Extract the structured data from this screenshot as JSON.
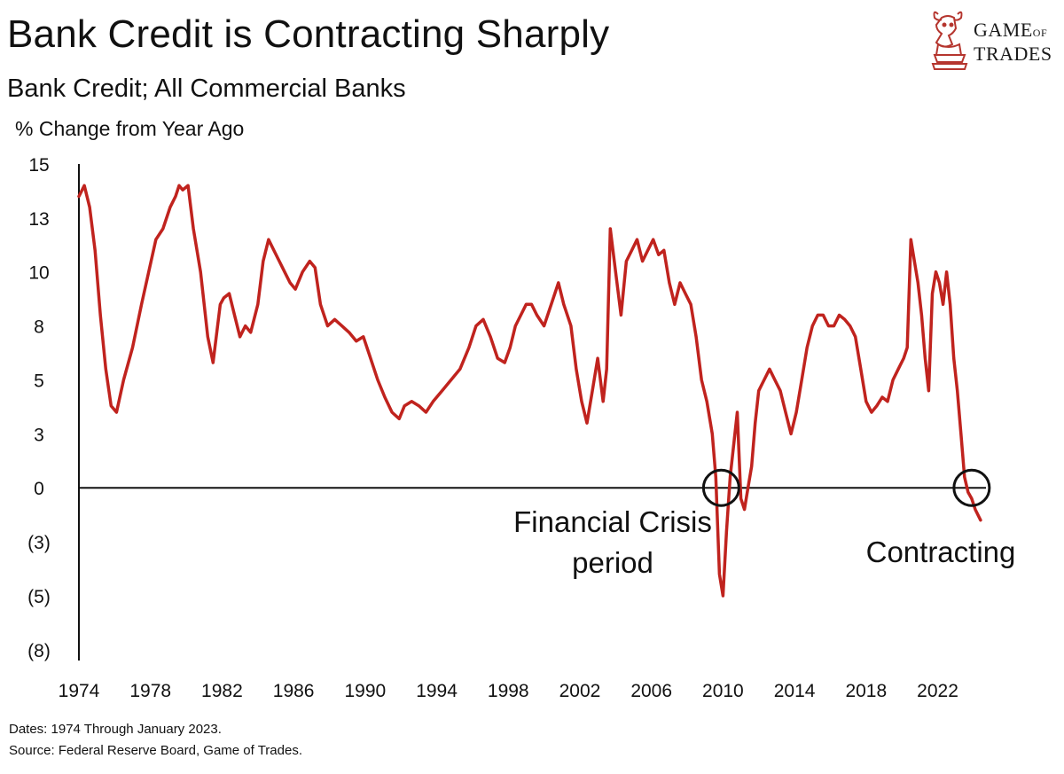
{
  "chart_data": {
    "type": "line",
    "title": "Bank Credit is Contracting Sharply",
    "subtitle": "Bank Credit; All Commercial Banks",
    "ylabel": "% Change from Year Ago",
    "xlabel": "",
    "ylim": [
      -8,
      15
    ],
    "xlim": [
      1974,
      2024.7
    ],
    "yticks": [
      15,
      12.5,
      10,
      7.5,
      5,
      2.5,
      0,
      -2.5,
      -5,
      -7.5
    ],
    "ytick_labels": [
      "15",
      "13",
      "10",
      "8",
      "5",
      "3",
      "0",
      "(3)",
      "(5)",
      "(8)"
    ],
    "xticks": [
      1974,
      1978,
      1982,
      1986,
      1990,
      1994,
      1998,
      2002,
      2006,
      2010,
      2014,
      2018,
      2022
    ],
    "xtick_labels": [
      "1974",
      "1978",
      "1982",
      "1986",
      "1990",
      "1994",
      "1998",
      "2002",
      "2006",
      "2010",
      "2014",
      "2018",
      "2022"
    ],
    "line_color": "#c0231e",
    "series": [
      {
        "name": "Bank Credit % Change from Year Ago",
        "x": [
          1974.0,
          1974.3,
          1974.6,
          1974.9,
          1975.2,
          1975.5,
          1975.8,
          1976.1,
          1976.5,
          1977.0,
          1977.5,
          1977.9,
          1978.3,
          1978.7,
          1979.1,
          1979.4,
          1979.6,
          1979.8,
          1980.1,
          1980.4,
          1980.8,
          1981.2,
          1981.5,
          1981.9,
          1982.1,
          1982.4,
          1982.7,
          1983.0,
          1983.3,
          1983.6,
          1984.0,
          1984.3,
          1984.6,
          1984.9,
          1985.2,
          1985.5,
          1985.8,
          1986.1,
          1986.5,
          1986.9,
          1987.2,
          1987.5,
          1987.9,
          1988.3,
          1988.7,
          1989.1,
          1989.5,
          1989.9,
          1990.3,
          1990.7,
          1991.1,
          1991.5,
          1991.9,
          1992.2,
          1992.6,
          1993.0,
          1993.4,
          1993.8,
          1994.3,
          1994.8,
          1995.3,
          1995.8,
          1996.2,
          1996.6,
          1997.0,
          1997.4,
          1997.8,
          1998.1,
          1998.4,
          1998.7,
          1999.0,
          1999.3,
          1999.6,
          2000.0,
          2000.4,
          2000.8,
          2001.1,
          2001.5,
          2001.8,
          2002.1,
          2002.4,
          2002.7,
          2003.0,
          2003.3,
          2003.5,
          2003.7,
          2004.0,
          2004.3,
          2004.6,
          2004.9,
          2005.2,
          2005.5,
          2005.8,
          2006.1,
          2006.4,
          2006.7,
          2007.0,
          2007.3,
          2007.6,
          2007.9,
          2008.2,
          2008.5,
          2008.8,
          2009.1,
          2009.4,
          2009.6,
          2009.8,
          2010.0,
          2010.2,
          2010.4,
          2010.6,
          2010.8,
          2011.0,
          2011.2,
          2011.4,
          2011.6,
          2011.8,
          2012.0,
          2012.3,
          2012.6,
          2012.9,
          2013.2,
          2013.5,
          2013.8,
          2014.1,
          2014.4,
          2014.7,
          2015.0,
          2015.3,
          2015.6,
          2015.9,
          2016.2,
          2016.5,
          2016.8,
          2017.1,
          2017.4,
          2017.7,
          2018.0,
          2018.3,
          2018.6,
          2018.9,
          2019.2,
          2019.5,
          2019.8,
          2020.1,
          2020.3,
          2020.5,
          2020.7,
          2020.9,
          2021.1,
          2021.3,
          2021.5,
          2021.7,
          2021.9,
          2022.1,
          2022.3,
          2022.5,
          2022.7,
          2022.9,
          2023.1,
          2023.3,
          2023.5,
          2023.7,
          2023.9,
          2024.1,
          2024.4
        ],
        "values": [
          13.5,
          14.0,
          13.0,
          11.0,
          8.0,
          5.5,
          3.8,
          3.5,
          5.0,
          6.5,
          8.5,
          10.0,
          11.5,
          12.0,
          13.0,
          13.5,
          14.0,
          13.8,
          14.0,
          12.0,
          10.0,
          7.0,
          5.8,
          8.5,
          8.8,
          9.0,
          8.0,
          7.0,
          7.5,
          7.2,
          8.5,
          10.5,
          11.5,
          11.0,
          10.5,
          10.0,
          9.5,
          9.2,
          10.0,
          10.5,
          10.2,
          8.5,
          7.5,
          7.8,
          7.5,
          7.2,
          6.8,
          7.0,
          6.0,
          5.0,
          4.2,
          3.5,
          3.2,
          3.8,
          4.0,
          3.8,
          3.5,
          4.0,
          4.5,
          5.0,
          5.5,
          6.5,
          7.5,
          7.8,
          7.0,
          6.0,
          5.8,
          6.5,
          7.5,
          8.0,
          8.5,
          8.5,
          8.0,
          7.5,
          8.5,
          9.5,
          8.5,
          7.5,
          5.5,
          4.0,
          3.0,
          4.5,
          6.0,
          4.0,
          5.5,
          12.0,
          10.0,
          8.0,
          10.5,
          11.0,
          11.5,
          10.5,
          11.0,
          11.5,
          10.8,
          11.0,
          9.5,
          8.5,
          9.5,
          9.0,
          8.5,
          7.0,
          5.0,
          4.0,
          2.5,
          0.5,
          -4.0,
          -5.0,
          -2.0,
          0.5,
          2.0,
          3.5,
          -0.5,
          -1.0,
          0.0,
          1.0,
          3.0,
          4.5,
          5.0,
          5.5,
          5.0,
          4.5,
          3.5,
          2.5,
          3.5,
          5.0,
          6.5,
          7.5,
          8.0,
          8.0,
          7.5,
          7.5,
          8.0,
          7.8,
          7.5,
          7.0,
          5.5,
          4.0,
          3.5,
          3.8,
          4.2,
          4.0,
          5.0,
          5.5,
          6.0,
          6.5,
          11.5,
          10.5,
          9.5,
          8.0,
          6.0,
          4.5,
          9.0,
          10.0,
          9.5,
          8.5,
          10.0,
          8.5,
          6.0,
          4.5,
          2.5,
          0.5,
          -0.2,
          -0.5,
          -1.0,
          -1.5
        ]
      }
    ],
    "annotations": [
      {
        "text_lines": [
          "Financial Crisis",
          "period"
        ],
        "x": 2009.9,
        "y": 0
      },
      {
        "text_lines": [
          "Contracting"
        ],
        "x": 2023.9,
        "y": 0
      }
    ],
    "footer": [
      "Dates: 1974 Through January 2023.",
      "Source: Federal Reserve Board, Game of Trades."
    ]
  },
  "logo": {
    "line1": "GAME",
    "line1_small": "OF",
    "line2": "TRADES",
    "color": "#b5352e"
  }
}
